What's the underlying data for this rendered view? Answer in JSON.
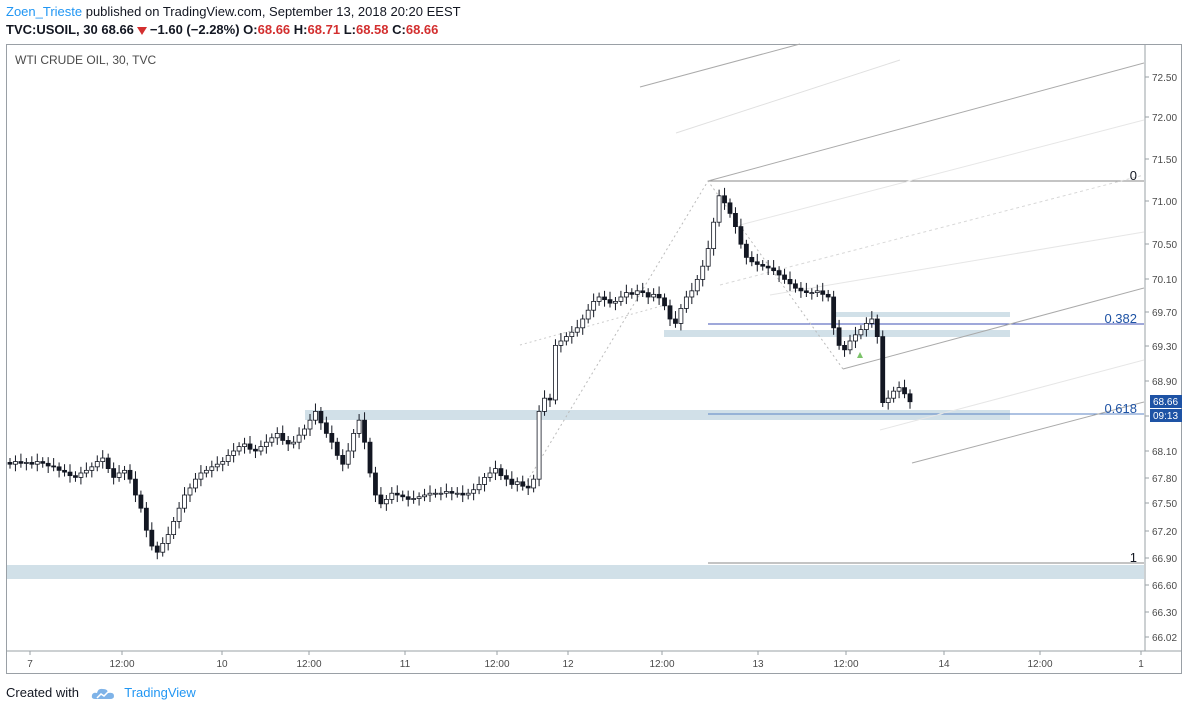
{
  "header": {
    "author": "Zoen_Trieste",
    "published_text": " published on TradingView.com, September 13, 2018 20:20 EEST",
    "symbol": "TVC:USOIL, 30",
    "last": "68.66",
    "change": "−1.60 (−2.28%)",
    "o_label": "O:",
    "o_value": "68.66",
    "h_label": "H:",
    "h_value": "68.71",
    "l_label": "L:",
    "l_value": "68.58",
    "c_label": "C:",
    "c_value": "68.66"
  },
  "chart": {
    "title": "WTI CRUDE OIL, 30, TVC",
    "last_price_label": "68.66",
    "countdown_label": "09:13",
    "accent_color": "#1e53a5",
    "x_labels": [
      "7",
      "12:00",
      "10",
      "12:00",
      "11",
      "12:00",
      "12",
      "12:00",
      "13",
      "12:00",
      "14",
      "12:00",
      "1"
    ],
    "y_labels": [
      "72.50",
      "72.00",
      "71.50",
      "71.00",
      "70.50",
      "70.10",
      "69.70",
      "69.30",
      "68.90",
      "68.50",
      "68.10",
      "67.80",
      "67.50",
      "67.20",
      "66.90",
      "66.60",
      "66.30",
      "66.02"
    ],
    "fib_labels": {
      "zero": "0",
      "p382": "0.382",
      "p618": "0.618",
      "one": "1"
    }
  },
  "chart_data": {
    "type": "candlestick",
    "title": "WTI CRUDE OIL, 30, TVC",
    "x_ticks": [
      "7",
      "12:00",
      "10",
      "12:00",
      "11",
      "12:00",
      "12",
      "12:00",
      "13",
      "12:00",
      "14",
      "12:00",
      "1"
    ],
    "y_ticks": [
      72.5,
      72.0,
      71.5,
      71.0,
      70.5,
      70.1,
      69.7,
      69.3,
      68.9,
      68.5,
      68.1,
      67.8,
      67.5,
      67.2,
      66.9,
      66.6,
      66.3,
      66.02
    ],
    "ylim": [
      65.9,
      72.7
    ],
    "close_path": [
      67.95,
      67.98,
      67.96,
      67.97,
      67.95,
      67.98,
      67.96,
      67.93,
      67.92,
      67.88,
      67.86,
      67.82,
      67.8,
      67.85,
      67.88,
      67.92,
      67.98,
      68.02,
      67.9,
      67.8,
      67.85,
      67.88,
      67.78,
      67.6,
      67.45,
      67.2,
      67.02,
      66.95,
      67.05,
      67.15,
      67.3,
      67.45,
      67.6,
      67.68,
      67.78,
      67.85,
      67.88,
      67.92,
      67.95,
      67.98,
      68.05,
      68.1,
      68.15,
      68.18,
      68.12,
      68.1,
      68.15,
      68.2,
      68.25,
      68.3,
      68.22,
      68.18,
      68.2,
      68.28,
      68.35,
      68.45,
      68.55,
      68.42,
      68.3,
      68.2,
      68.05,
      67.95,
      68.1,
      68.3,
      68.45,
      68.2,
      67.85,
      67.6,
      67.5,
      67.55,
      67.62,
      67.6,
      67.58,
      67.55,
      67.56,
      67.58,
      67.6,
      67.62,
      67.62,
      67.62,
      67.64,
      67.62,
      67.62,
      67.6,
      67.62,
      67.66,
      67.72,
      67.8,
      67.85,
      67.9,
      67.82,
      67.78,
      67.72,
      67.75,
      67.7,
      67.68,
      67.78,
      68.55,
      68.7,
      68.68,
      69.3,
      69.35,
      69.4,
      69.45,
      69.5,
      69.6,
      69.7,
      69.8,
      69.85,
      69.82,
      69.78,
      69.8,
      69.85,
      69.9,
      69.88,
      69.92,
      69.9,
      69.85,
      69.88,
      69.84,
      69.75,
      69.6,
      69.55,
      69.72,
      69.85,
      69.92,
      70.05,
      70.2,
      70.4,
      70.7,
      71.0,
      70.92,
      70.8,
      70.65,
      70.45,
      70.3,
      70.25,
      70.22,
      70.2,
      70.18,
      70.15,
      70.1,
      70.05,
      70.0,
      69.95,
      69.92,
      69.9,
      69.9,
      69.92,
      69.88,
      69.85,
      69.5,
      69.3,
      69.25,
      69.35,
      69.42,
      69.48,
      69.55,
      69.6,
      69.4,
      68.65,
      68.7,
      68.78,
      68.82,
      68.75,
      68.66
    ]
  }
}
